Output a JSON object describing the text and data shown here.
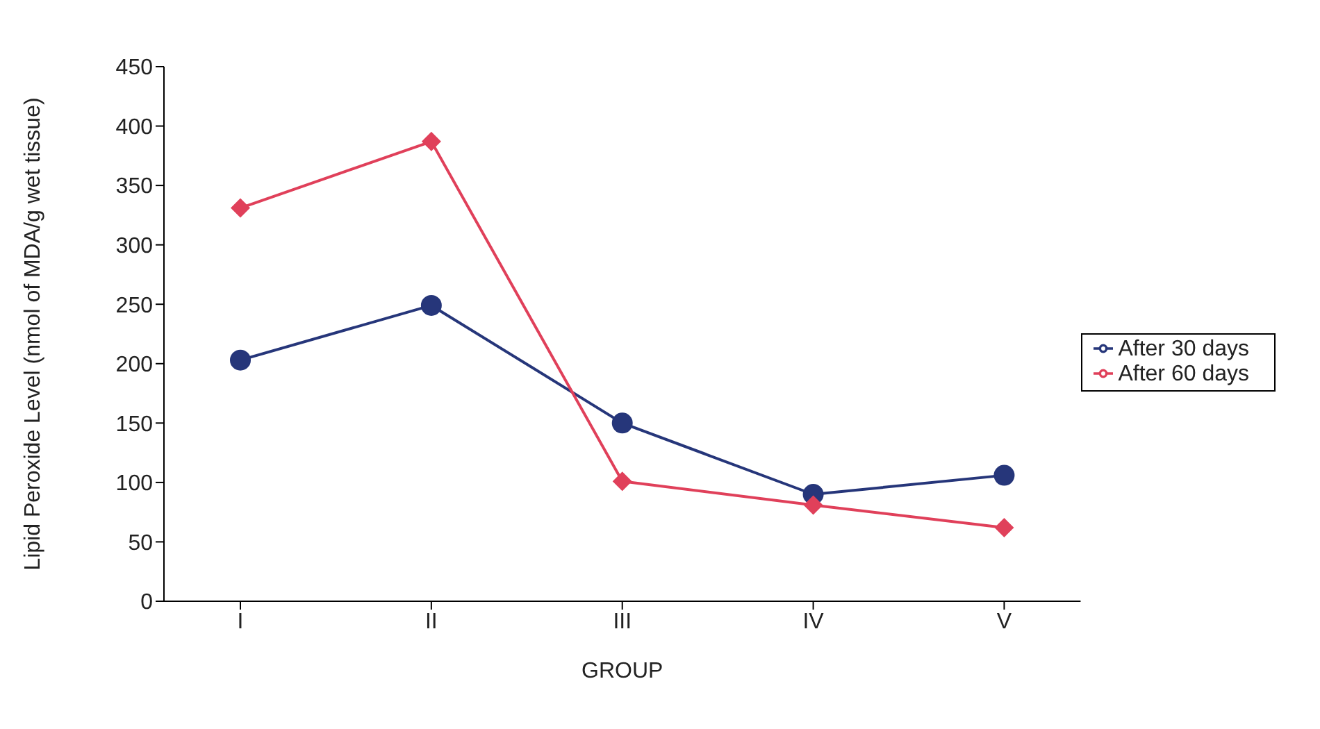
{
  "chart_data": {
    "type": "line",
    "xlabel": "GROUP",
    "ylabel": "Lipid Peroxide Level (nmol of MDA/g wet tissue)",
    "categories": [
      "I",
      "II",
      "III",
      "IV",
      "V"
    ],
    "series": [
      {
        "name": "After 30 days",
        "color": "#26367a",
        "marker": "circle",
        "values": [
          203,
          249,
          150,
          90,
          106
        ]
      },
      {
        "name": "After 60 days",
        "color": "#e0405a",
        "marker": "diamond",
        "values": [
          331,
          387,
          101,
          81,
          62
        ]
      }
    ],
    "ylim": [
      0,
      450
    ],
    "yticks": [
      0,
      50,
      100,
      150,
      200,
      250,
      300,
      350,
      400,
      450
    ],
    "grid": false,
    "legend": "right"
  }
}
